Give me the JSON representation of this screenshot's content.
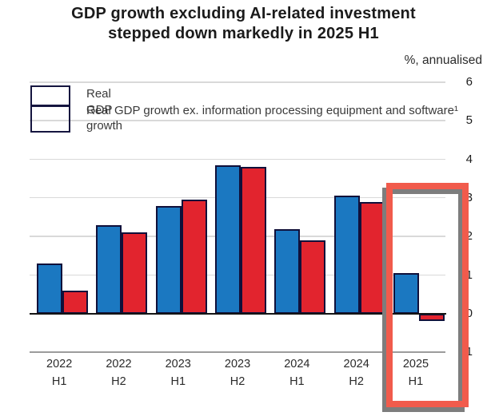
{
  "title": {
    "line1": "GDP growth excluding AI-related investment",
    "line2": "stepped down markedly in 2025 H1"
  },
  "chart_data": {
    "type": "bar",
    "title": "GDP growth excluding AI-related investment stepped down markedly in 2025 H1",
    "unit_label": "%, annualised",
    "xlabel": "",
    "ylabel": "%, annualised",
    "ylim": [
      -1,
      6
    ],
    "grid": true,
    "legend_position": "top-left",
    "categories": [
      "2022 H1",
      "2022 H2",
      "2023 H1",
      "2023 H2",
      "2024 H1",
      "2024 H2",
      "2025 H1"
    ],
    "series": [
      {
        "key": "real-gdp",
        "name": "Real GDP growth",
        "color": "#1b78c1",
        "values": [
          1.3,
          2.3,
          2.8,
          3.85,
          2.2,
          3.05,
          1.05
        ]
      },
      {
        "key": "real-gdp-ex-ai",
        "name": "Real GDP growth ex. information processing equipment and software¹",
        "color": "#e2242e",
        "values": [
          0.6,
          2.1,
          2.95,
          3.8,
          1.9,
          2.9,
          -0.2
        ]
      }
    ],
    "y_axis": {
      "min": -1,
      "max": 6,
      "tick_step": 1,
      "ticks": [
        6,
        5,
        4,
        3,
        2,
        1,
        0,
        -1
      ],
      "tick_labels": [
        "6",
        "5",
        "4",
        "3",
        "2",
        "1",
        "0",
        "-1"
      ]
    },
    "annotation": {
      "type": "highlight-box",
      "target": "2025 H1",
      "color": "#f15b4c"
    }
  },
  "colors": {
    "bar_blue": "#1b78c1",
    "bar_red": "#e2242e",
    "bar_outline": "#10103a",
    "gridline": "#d9d9d9",
    "gridline_bottom": "#9c9c9c",
    "axis": "#141414",
    "highlight_box": "#f15b4c",
    "highlight_shadow": "#7d7d7d"
  }
}
